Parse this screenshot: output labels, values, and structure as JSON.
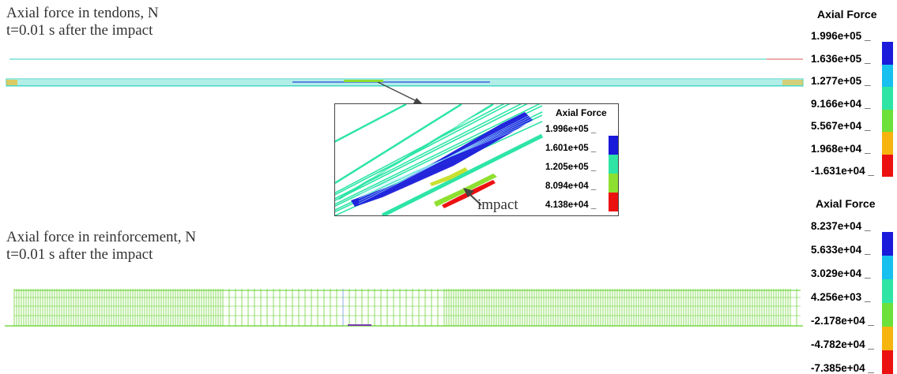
{
  "tendon_figure": {
    "title_line1": "Axial force in tendons, N",
    "title_line2": "t=0.01 s after the impact"
  },
  "reinforcement_figure": {
    "title_line1": "Axial force in reinforcement, N",
    "title_line2": "t=0.01 s after the impact"
  },
  "inset": {
    "callout_label": "impact"
  },
  "legends": {
    "tendon": {
      "heading": "Axial Force",
      "ticks": [
        "1.996e+05",
        "1.636e+05",
        "1.277e+05",
        "9.166e+04",
        "5.567e+04",
        "1.968e+04",
        "-1.631e+04"
      ],
      "colors": [
        "#1a1adb",
        "#17c0ee",
        "#2ee5a6",
        "#6ee03a",
        "#f6b40e",
        "#ec1111"
      ]
    },
    "inset": {
      "heading": "Axial Force",
      "ticks": [
        "1.996e+05",
        "1.601e+05",
        "1.205e+05",
        "8.094e+04",
        "4.138e+04"
      ],
      "colors": [
        "#1a1adb",
        "#2ee5a6",
        "#8ee030",
        "#ec1111"
      ]
    },
    "reinforcement": {
      "heading": "Axial Force",
      "ticks": [
        "8.237e+04",
        "5.633e+04",
        "3.029e+04",
        "4.256e+03",
        "-2.178e+04",
        "-4.782e+04",
        "-7.385e+04"
      ],
      "colors": [
        "#1a1adb",
        "#17c0ee",
        "#2ee5a6",
        "#6ee03a",
        "#f6b40e",
        "#ec1111"
      ]
    }
  },
  "colors": {
    "tendon_line": "#30d0c0",
    "rebar_line": "#5cd020",
    "arrow": "#444444"
  }
}
